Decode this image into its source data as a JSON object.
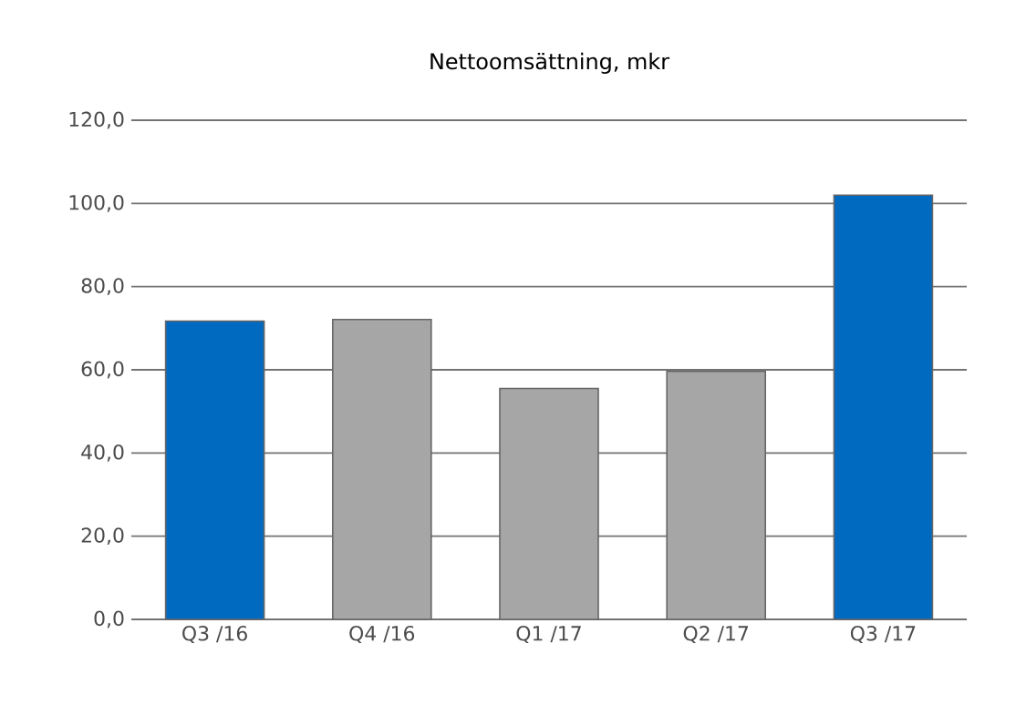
{
  "chart_data": {
    "type": "bar",
    "title": "Nettoomsättning, mkr",
    "categories": [
      "Q3 /16",
      "Q4 /16",
      "Q1 /17",
      "Q2 /17",
      "Q3 /17"
    ],
    "values": [
      71.7,
      72.1,
      55.5,
      59.6,
      102.0
    ],
    "colors": [
      "#0069c0",
      "#a6a6a6",
      "#a6a6a6",
      "#a6a6a6",
      "#0069c0"
    ],
    "ylim": [
      0,
      120
    ],
    "yticks": [
      {
        "value": 0,
        "label": "0,0"
      },
      {
        "value": 20,
        "label": "20,0"
      },
      {
        "value": 40,
        "label": "40,0"
      },
      {
        "value": 60,
        "label": "60,0"
      },
      {
        "value": 80,
        "label": "80,0"
      },
      {
        "value": 100,
        "label": "100,0"
      },
      {
        "value": 120,
        "label": "120,0"
      }
    ],
    "grid": "y"
  }
}
